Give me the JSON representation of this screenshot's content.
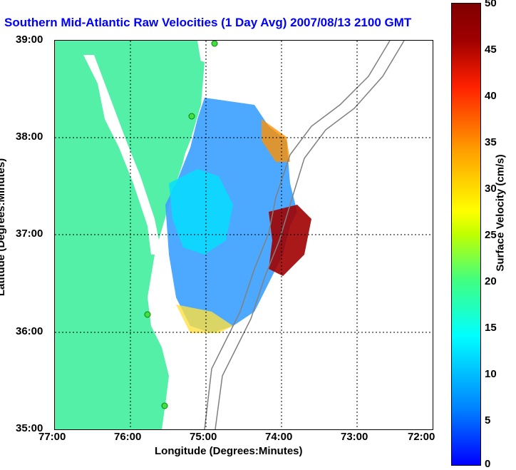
{
  "title": "Southern Mid-Atlantic Raw Velocities (1 Day Avg) 2007/08/13 2100 GMT",
  "xaxis": {
    "label": "Longitude (Degrees:Minutes)",
    "ticks": [
      "77:00",
      "76:00",
      "75:00",
      "74:00",
      "73:00",
      "72:00"
    ]
  },
  "yaxis": {
    "label": "Latitude (Degrees:Minutes)",
    "ticks": [
      "39:00",
      "38:00",
      "37:00",
      "36:00",
      "35:00"
    ]
  },
  "colorbar": {
    "label": "Surface Velocity (cm/s)",
    "ticks": [
      "50",
      "45",
      "40",
      "35",
      "30",
      "25",
      "20",
      "15",
      "10",
      "5",
      "0"
    ]
  },
  "colors": {
    "title": "#0000ff",
    "land": "#55f0a8",
    "grid": "#000000",
    "bathymetry": "#808080"
  }
}
